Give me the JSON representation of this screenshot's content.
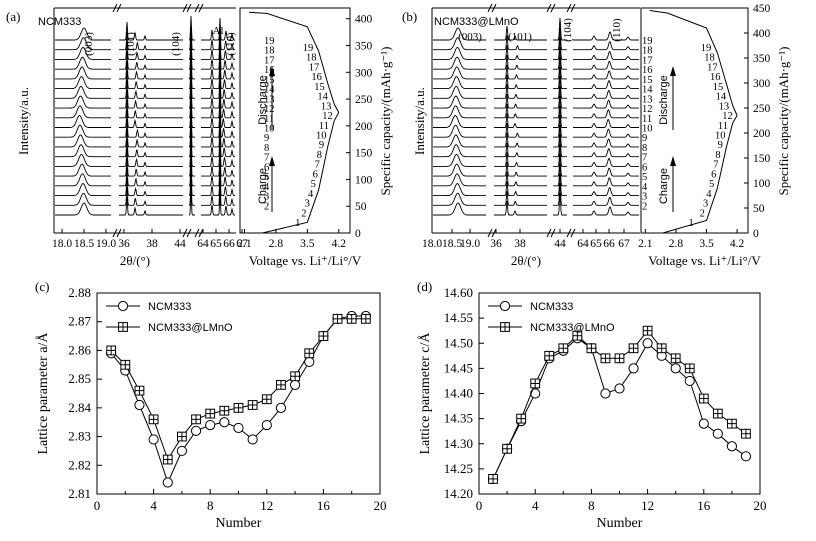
{
  "chart_data": [
    {
      "panel": "(a)",
      "type": "line",
      "sample": "NCM333",
      "ylabel_left": "Intensity/a.u.",
      "ylabel_right": "Specific capacity/(mAh·g⁻¹)",
      "xlabel_xrd": "2θ/(°)",
      "xlabel_voltage": "Voltage vs. Li⁺/Li°/V",
      "peak_labels": [
        "(003)",
        "(101)",
        "(104)",
        "Al",
        "(110)"
      ],
      "xrd_segments": [
        {
          "ticks": [
            "18.0",
            "18.5",
            "19.0"
          ]
        },
        {
          "ticks": [
            "36",
            "38"
          ]
        },
        {
          "ticks": [
            "44"
          ]
        },
        {
          "ticks": [
            "64",
            "65",
            "66",
            "67"
          ]
        }
      ],
      "voltage_ticks": [
        "2.1",
        "2.8",
        "3.5",
        "4.2"
      ],
      "capacity_ticks": [
        "0",
        "50",
        "100",
        "150",
        "200",
        "250",
        "300",
        "350",
        "400"
      ],
      "capacity_range": [
        0,
        420
      ],
      "scan_numbers": [
        "2",
        "3",
        "4",
        "5",
        "6",
        "7",
        "8",
        "9",
        "10",
        "11",
        "12",
        "13",
        "14",
        "15",
        "16",
        "17",
        "18",
        "19"
      ],
      "curve_numbers": [
        "1",
        "2",
        "3",
        "4",
        "5",
        "6",
        "7",
        "8",
        "9",
        "10",
        "11",
        "12",
        "13",
        "14",
        "15",
        "16",
        "17",
        "18",
        "19"
      ],
      "arrow_labels": [
        "Charge",
        "Discharge"
      ],
      "charge_curve": {
        "x": [
          2.5,
          3.5,
          3.75,
          3.95,
          4.1,
          4.2
        ],
        "y": [
          0,
          20,
          80,
          160,
          210,
          225
        ]
      },
      "discharge_curve": {
        "x": [
          4.2,
          4.1,
          3.95,
          3.75,
          3.5,
          2.6,
          2.2
        ],
        "y": [
          225,
          240,
          280,
          340,
          385,
          410,
          412
        ]
      }
    },
    {
      "panel": "(b)",
      "type": "line",
      "sample": "NCM333@LMnO",
      "ylabel_left": "Intensity/a.u.",
      "ylabel_right": "Specific capacity/(mAh·g⁻¹)",
      "xlabel_xrd": "2θ/(°)",
      "xlabel_voltage": "Voltage vs. Li⁺/Li°/V",
      "peak_labels": [
        "(003)",
        "(101)",
        "(104)",
        "(110)"
      ],
      "xrd_segments": [
        {
          "ticks": [
            "18.0",
            "18.5",
            "19.0"
          ]
        },
        {
          "ticks": [
            "36",
            "38"
          ]
        },
        {
          "ticks": [
            "44"
          ]
        },
        {
          "ticks": [
            "64",
            "65",
            "66",
            "67"
          ]
        }
      ],
      "voltage_ticks": [
        "2.1",
        "2.8",
        "3.5",
        "4.2"
      ],
      "capacity_ticks": [
        "0",
        "50",
        "100",
        "150",
        "200",
        "250",
        "300",
        "350",
        "400",
        "450"
      ],
      "capacity_range": [
        0,
        450
      ],
      "scan_numbers": [
        "2",
        "3",
        "4",
        "5",
        "6",
        "7",
        "8",
        "9",
        "10",
        "11",
        "12",
        "13",
        "14",
        "15",
        "16",
        "17",
        "18",
        "19"
      ],
      "curve_numbers": [
        "1",
        "2",
        "3",
        "4",
        "5",
        "6",
        "7",
        "8",
        "9",
        "10",
        "11",
        "12",
        "13",
        "14",
        "15",
        "16",
        "17",
        "18",
        "19"
      ],
      "arrow_labels": [
        "Charge",
        "Discharge"
      ],
      "charge_curve": {
        "x": [
          2.5,
          3.5,
          3.75,
          3.95,
          4.1,
          4.2
        ],
        "y": [
          0,
          25,
          90,
          170,
          220,
          235
        ]
      },
      "discharge_curve": {
        "x": [
          4.2,
          4.1,
          3.95,
          3.75,
          3.5,
          2.6,
          2.2
        ],
        "y": [
          235,
          255,
          300,
          360,
          410,
          440,
          445
        ]
      }
    },
    {
      "panel": "(c)",
      "type": "line",
      "xlabel": "Number",
      "ylabel": "Lattice parameter a/Å",
      "xlim": [
        0,
        20
      ],
      "ylim": [
        2.81,
        2.88
      ],
      "xticks": [
        0,
        4,
        8,
        12,
        16,
        20
      ],
      "yticks": [
        2.81,
        2.82,
        2.83,
        2.84,
        2.85,
        2.86,
        2.87,
        2.88
      ],
      "legend_position": "top-left",
      "series": [
        {
          "name": "NCM333",
          "marker": "circle",
          "x": [
            1,
            2,
            3,
            4,
            5,
            6,
            7,
            8,
            9,
            10,
            11,
            12,
            13,
            14,
            15,
            16,
            17,
            18,
            19
          ],
          "y": [
            2.859,
            2.853,
            2.841,
            2.829,
            2.814,
            2.825,
            2.832,
            2.834,
            2.835,
            2.833,
            2.829,
            2.834,
            2.84,
            2.848,
            2.856,
            2.865,
            2.871,
            2.872,
            2.872
          ]
        },
        {
          "name": "NCM333@LMnO",
          "marker": "square-cross",
          "x": [
            1,
            2,
            3,
            4,
            5,
            6,
            7,
            8,
            9,
            10,
            11,
            12,
            13,
            14,
            15,
            16,
            17,
            18,
            19
          ],
          "y": [
            2.86,
            2.855,
            2.846,
            2.836,
            2.822,
            2.83,
            2.836,
            2.838,
            2.839,
            2.84,
            2.841,
            2.843,
            2.848,
            2.851,
            2.859,
            2.865,
            2.871,
            2.871,
            2.871
          ]
        }
      ]
    },
    {
      "panel": "(d)",
      "type": "line",
      "xlabel": "Number",
      "ylabel": "Lattice parameter c/Å",
      "xlim": [
        0,
        20
      ],
      "ylim": [
        14.2,
        14.6
      ],
      "xticks": [
        0,
        4,
        8,
        12,
        16,
        20
      ],
      "yticks": [
        14.2,
        14.25,
        14.3,
        14.35,
        14.4,
        14.45,
        14.5,
        14.55,
        14.6
      ],
      "ytick_labels": [
        "14.20",
        "14.25",
        "14.30",
        "14.35",
        "14.40",
        "14.45",
        "14.50",
        "14.55",
        "14.60"
      ],
      "legend_position": "top-left",
      "series": [
        {
          "name": "NCM333",
          "marker": "circle",
          "x": [
            1,
            2,
            3,
            4,
            5,
            6,
            7,
            8,
            9,
            10,
            11,
            12,
            13,
            14,
            15,
            16,
            17,
            18,
            19
          ],
          "y": [
            14.23,
            14.29,
            14.345,
            14.4,
            14.47,
            14.485,
            14.51,
            14.49,
            14.4,
            14.41,
            14.45,
            14.5,
            14.475,
            14.45,
            14.425,
            14.34,
            14.32,
            14.295,
            14.275
          ]
        },
        {
          "name": "NCM333@LMnO",
          "marker": "square-cross",
          "x": [
            1,
            2,
            3,
            4,
            5,
            6,
            7,
            8,
            9,
            10,
            11,
            12,
            13,
            14,
            15,
            16,
            17,
            18,
            19
          ],
          "y": [
            14.23,
            14.29,
            14.35,
            14.42,
            14.475,
            14.49,
            14.515,
            14.49,
            14.47,
            14.47,
            14.49,
            14.525,
            14.49,
            14.47,
            14.45,
            14.39,
            14.36,
            14.34,
            14.32
          ]
        }
      ]
    }
  ]
}
